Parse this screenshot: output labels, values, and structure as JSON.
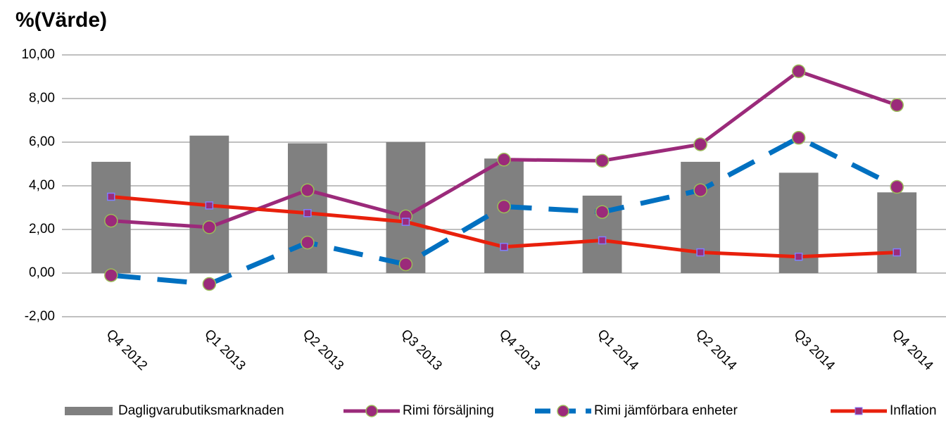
{
  "chart_data": {
    "type": "combo",
    "title": "%(Värde)",
    "categories": [
      "Q4 2012",
      "Q1 2013",
      "Q2 2013",
      "Q3 2013",
      "Q4 2013",
      "Q1 2014",
      "Q2 2014",
      "Q3 2014",
      "Q4 2014"
    ],
    "series": [
      {
        "name": "Dagligvarubutiksmarknaden",
        "type": "bar",
        "color": "#808080",
        "values": [
          5.1,
          6.3,
          5.95,
          6.0,
          5.25,
          3.55,
          5.1,
          4.6,
          3.7
        ]
      },
      {
        "name": "Rimi försäljning",
        "type": "line",
        "color": "#9b2a7a",
        "marker": "circle",
        "marker_color": "#9b2a7a",
        "values": [
          2.4,
          2.1,
          3.8,
          2.6,
          5.2,
          5.15,
          5.9,
          9.25,
          7.7
        ]
      },
      {
        "name": "Rimi jämförbara enheter",
        "type": "line",
        "dash": true,
        "color": "#0070c0",
        "marker": "circle",
        "marker_color": "#9b2a7a",
        "values": [
          -0.1,
          -0.5,
          1.4,
          0.4,
          3.05,
          2.8,
          3.8,
          6.2,
          3.95
        ]
      },
      {
        "name": "Inflation",
        "type": "line",
        "color": "#e8200c",
        "marker": "square",
        "marker_color": "#9b2a7a",
        "values": [
          3.5,
          3.1,
          2.75,
          2.35,
          1.2,
          1.5,
          0.95,
          0.75,
          0.95
        ]
      }
    ],
    "ylim": [
      -2,
      10
    ],
    "yticks": [
      {
        "value": -2,
        "label": "-2,00"
      },
      {
        "value": 0,
        "label": "0,00"
      },
      {
        "value": 2,
        "label": "2,00"
      },
      {
        "value": 4,
        "label": "4,00"
      },
      {
        "value": 6,
        "label": "6,00"
      },
      {
        "value": 8,
        "label": "8,00"
      },
      {
        "value": 10,
        "label": "10,00"
      }
    ],
    "grid": true,
    "legend": "bottom"
  }
}
